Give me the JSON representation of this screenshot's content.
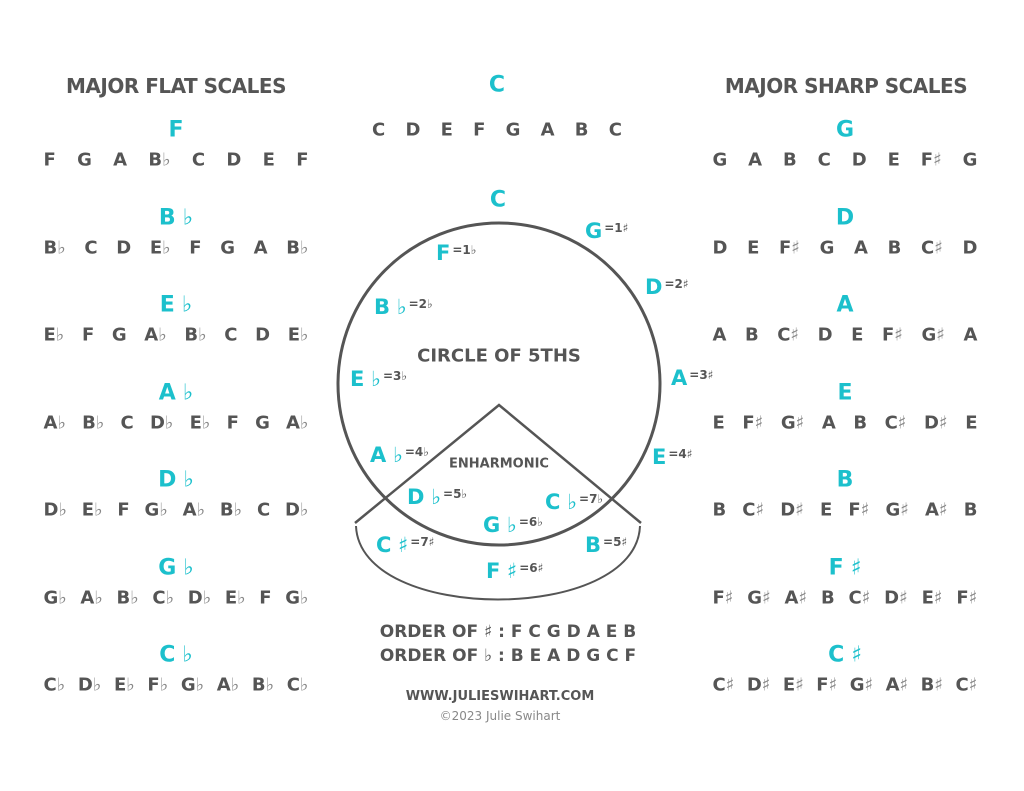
{
  "colors": {
    "accent": "#1cc0cc",
    "text": "#555555"
  },
  "flat": {
    "title": "MAJOR FLAT SCALES",
    "scales": [
      {
        "key": "F",
        "notes": [
          "F",
          "G",
          "A",
          "B♭",
          "C",
          "D",
          "E",
          "F"
        ]
      },
      {
        "key": "B♭",
        "notes": [
          "B♭",
          "C",
          "D",
          "E♭",
          "F",
          "G",
          "A",
          "B♭"
        ]
      },
      {
        "key": "E♭",
        "notes": [
          "E♭",
          "F",
          "G",
          "A♭",
          "B♭",
          "C",
          "D",
          "E♭"
        ]
      },
      {
        "key": "A♭",
        "notes": [
          "A♭",
          "B♭",
          "C",
          "D♭",
          "E♭",
          "F",
          "G",
          "A♭"
        ]
      },
      {
        "key": "D♭",
        "notes": [
          "D♭",
          "E♭",
          "F",
          "G♭",
          "A♭",
          "B♭",
          "C",
          "D♭"
        ]
      },
      {
        "key": "G♭",
        "notes": [
          "G♭",
          "A♭",
          "B♭",
          "C♭",
          "D♭",
          "E♭",
          "F",
          "G♭"
        ]
      },
      {
        "key": "C♭",
        "notes": [
          "C♭",
          "D♭",
          "E♭",
          "F♭",
          "G♭",
          "A♭",
          "B♭",
          "C♭"
        ]
      }
    ]
  },
  "sharp": {
    "title": "MAJOR SHARP SCALES",
    "scales": [
      {
        "key": "G",
        "notes": [
          "G",
          "A",
          "B",
          "C",
          "D",
          "E",
          "F♯",
          "G"
        ]
      },
      {
        "key": "D",
        "notes": [
          "D",
          "E",
          "F♯",
          "G",
          "A",
          "B",
          "C♯",
          "D"
        ]
      },
      {
        "key": "A",
        "notes": [
          "A",
          "B",
          "C♯",
          "D",
          "E",
          "F♯",
          "G♯",
          "A"
        ]
      },
      {
        "key": "E",
        "notes": [
          "E",
          "F♯",
          "G♯",
          "A",
          "B",
          "C♯",
          "D♯",
          "E"
        ]
      },
      {
        "key": "B",
        "notes": [
          "B",
          "C♯",
          "D♯",
          "E",
          "F♯",
          "G♯",
          "A♯",
          "B"
        ]
      },
      {
        "key": "F♯",
        "notes": [
          "F♯",
          "G♯",
          "A♯",
          "B",
          "C♯",
          "D♯",
          "E♯",
          "F♯"
        ]
      },
      {
        "key": "C♯",
        "notes": [
          "C♯",
          "D♯",
          "E♯",
          "F♯",
          "G♯",
          "A♯",
          "B♯",
          "C♯"
        ]
      }
    ]
  },
  "c_major": {
    "key": "C",
    "notes": [
      "C",
      "D",
      "E",
      "F",
      "G",
      "A",
      "B",
      "C"
    ]
  },
  "circle": {
    "title": "CIRCLE OF 5THS",
    "enharmonic_label": "ENHARMONIC",
    "top": "C",
    "labels": [
      {
        "note": "G",
        "count": "=1♯"
      },
      {
        "note": "F",
        "count": "=1♭"
      },
      {
        "note": "D",
        "count": "=2♯"
      },
      {
        "note": "B♭",
        "count": "=2♭"
      },
      {
        "note": "A",
        "count": "=3♯"
      },
      {
        "note": "E♭",
        "count": "=3♭"
      },
      {
        "note": "A♭",
        "count": "=4♭"
      },
      {
        "note": "E",
        "count": "=4♯"
      },
      {
        "note": "D♭",
        "count": "=5♭"
      },
      {
        "note": "C♭",
        "count": "=7♭"
      },
      {
        "note": "G♭",
        "count": "=6♭"
      },
      {
        "note": "C♯",
        "count": "=7♯"
      },
      {
        "note": "B",
        "count": "=5♯"
      },
      {
        "note": "F♯",
        "count": "=6♯"
      }
    ]
  },
  "order": {
    "sharps": "ORDER OF ♯ : F C G D A E B",
    "flats": "ORDER OF ♭ : B E A D G C F"
  },
  "footer": {
    "website": "WWW.JULIESWIHART.COM",
    "copyright": "©2023 Julie Swihart"
  }
}
